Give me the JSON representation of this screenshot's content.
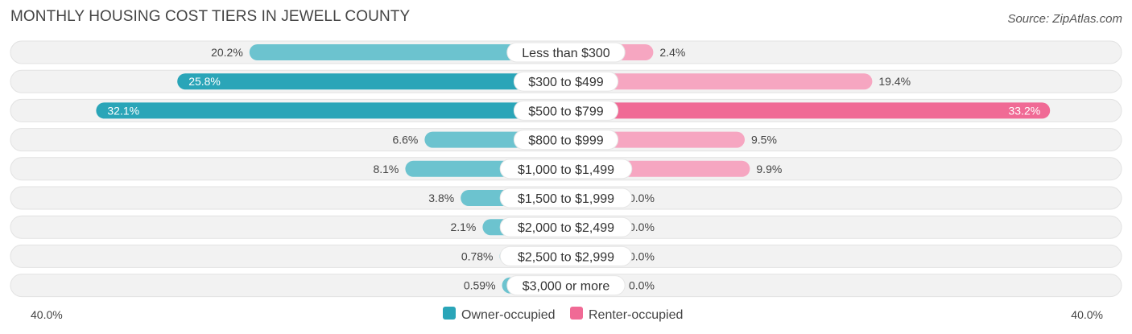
{
  "header": {
    "title": "MONTHLY HOUSING COST TIERS IN JEWELL COUNTY",
    "source": "Source: ZipAtlas.com"
  },
  "chart_data": {
    "type": "bar",
    "orientation": "diverging-horizontal",
    "title": "MONTHLY HOUSING COST TIERS IN JEWELL COUNTY",
    "categories": [
      "Less than $300",
      "$300 to $499",
      "$500 to $799",
      "$800 to $999",
      "$1,000 to $1,499",
      "$1,500 to $1,999",
      "$2,000 to $2,499",
      "$2,500 to $2,999",
      "$3,000 or more"
    ],
    "series": [
      {
        "name": "Owner-occupied",
        "values": [
          20.2,
          25.8,
          32.1,
          6.6,
          8.1,
          3.8,
          2.1,
          0.78,
          0.59
        ],
        "labels": [
          "20.2%",
          "25.8%",
          "32.1%",
          "6.6%",
          "8.1%",
          "3.8%",
          "2.1%",
          "0.78%",
          "0.59%"
        ]
      },
      {
        "name": "Renter-occupied",
        "values": [
          2.4,
          19.4,
          33.2,
          9.5,
          9.9,
          0.0,
          0.0,
          0.0,
          0.0
        ],
        "labels": [
          "2.4%",
          "19.4%",
          "33.2%",
          "9.5%",
          "9.9%",
          "0.0%",
          "0.0%",
          "0.0%",
          "0.0%"
        ]
      }
    ],
    "xlim": [
      -40,
      40
    ],
    "axis_labels": {
      "left": "40.0%",
      "right": "40.0%"
    },
    "legend_position": "bottom-center",
    "colors": {
      "owner": "#6cc3cf",
      "owner_strong": "#2aa5b8",
      "renter": "#f6a6c1",
      "renter_strong": "#f06a95",
      "track": "#efefef"
    }
  }
}
